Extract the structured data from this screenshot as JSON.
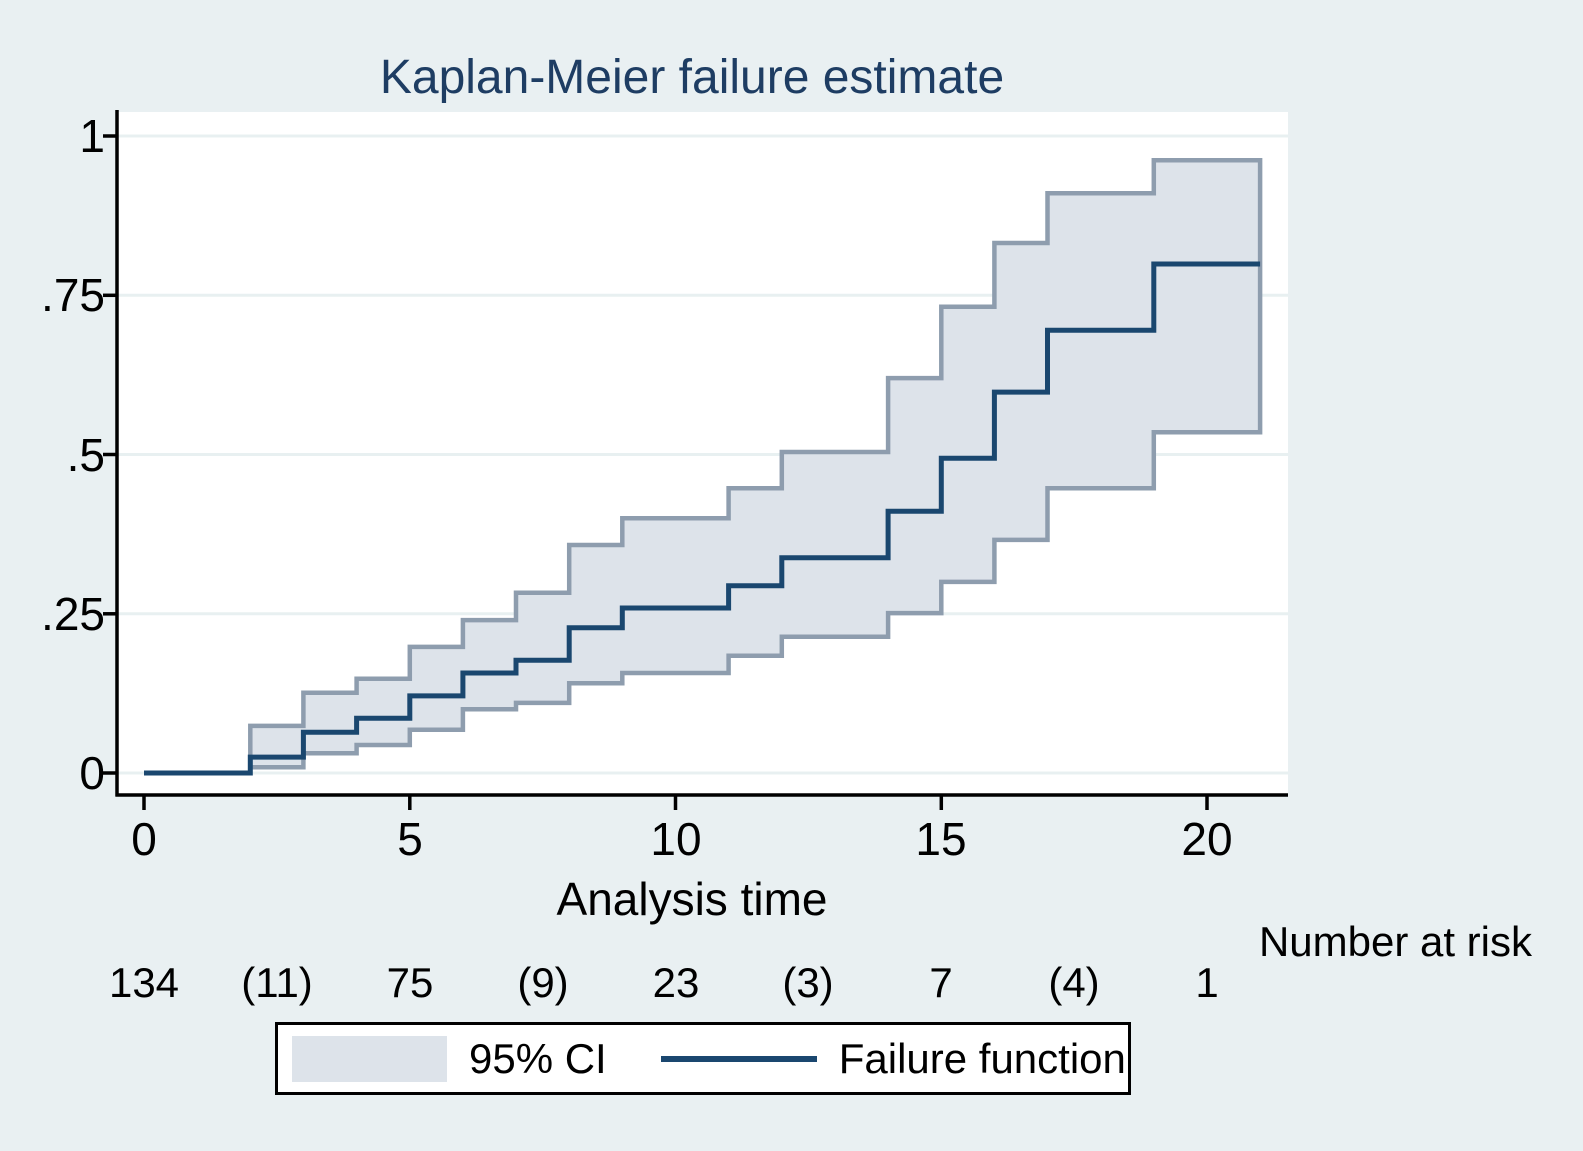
{
  "title": "Kaplan-Meier failure estimate",
  "colors": {
    "background": "#e9f0f2",
    "plot_background": "#ffffff",
    "gridline": "#e8f0f1",
    "axis": "#000000",
    "title_text": "#1e3d63",
    "failure_line": "#1a476f",
    "ci_fill": "#dde3ea",
    "ci_border": "#8e9dae",
    "text": "#000000"
  },
  "chart_data": {
    "type": "line",
    "subtype": "kaplan-meier-failure-step-with-confidence-band",
    "title": "Kaplan-Meier failure estimate",
    "xlabel": "Analysis time",
    "ylabel": "",
    "xlim": [
      0,
      21.5
    ],
    "ylim": [
      0,
      1.04
    ],
    "grid": "horizontal",
    "legend_position": "bottom-box",
    "x_ticks": [
      "0",
      "5",
      "10",
      "15",
      "20"
    ],
    "x_tick_values": [
      0,
      5,
      10,
      15,
      20
    ],
    "y_ticks": [
      {
        "value": 0,
        "label": "0"
      },
      {
        "value": 0.25,
        "label": ".25"
      },
      {
        "value": 0.5,
        "label": ".5"
      },
      {
        "value": 0.75,
        "label": ".75"
      },
      {
        "value": 1,
        "label": "1"
      }
    ],
    "step_times": [
      2,
      3,
      4,
      5,
      6,
      7,
      8,
      9,
      11,
      12,
      14,
      15,
      16,
      17,
      19
    ],
    "start_time": 0,
    "end_time": 21,
    "series": [
      {
        "name": "Failure function",
        "role": "estimate",
        "start_value": 0,
        "values": [
          0.025,
          0.064,
          0.086,
          0.121,
          0.157,
          0.177,
          0.228,
          0.259,
          0.294,
          0.338,
          0.411,
          0.494,
          0.598,
          0.695,
          0.799
        ]
      },
      {
        "name": "95% CI lower bound",
        "role": "ci-lower",
        "values": [
          0.009,
          0.031,
          0.044,
          0.068,
          0.1,
          0.11,
          0.141,
          0.157,
          0.184,
          0.214,
          0.251,
          0.3,
          0.366,
          0.447,
          0.535
        ]
      },
      {
        "name": "95% CI upper bound",
        "role": "ci-upper",
        "values": [
          0.074,
          0.126,
          0.148,
          0.198,
          0.24,
          0.283,
          0.358,
          0.4,
          0.447,
          0.504,
          0.62,
          0.732,
          0.832,
          0.91,
          0.962
        ]
      }
    ],
    "legend": [
      {
        "swatch": "area",
        "label": "95% CI"
      },
      {
        "swatch": "line",
        "label": "Failure function"
      }
    ],
    "risk_table": {
      "label": "Number at risk",
      "times": [
        0,
        2.5,
        5,
        7.5,
        10,
        12.5,
        15,
        17.5,
        20
      ],
      "values": [
        "134",
        "(11)",
        "75",
        "(9)",
        "23",
        "(3)",
        "7",
        "(4)",
        "1"
      ]
    }
  }
}
